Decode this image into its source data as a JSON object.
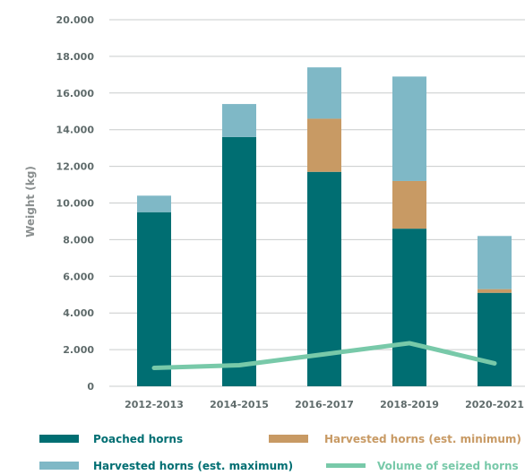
{
  "chart_data": {
    "type": "bar",
    "stacked": true,
    "categories": [
      "2012-2013",
      "2014-2015",
      "2016-2017",
      "2018-2019",
      "2020-2021"
    ],
    "ylabel": "Weight (kg)",
    "ylim": [
      0,
      20000
    ],
    "yticks": [
      0,
      2000,
      4000,
      6000,
      8000,
      10000,
      12000,
      14000,
      16000,
      18000,
      20000
    ],
    "ytick_labels": [
      "0",
      "2.000",
      "4.000",
      "6.000",
      "8.000",
      "10.000",
      "12.000",
      "14.000",
      "16.000",
      "18.000",
      "20.000"
    ],
    "grid": true,
    "legend_position": "bottom",
    "series": [
      {
        "name": "Poached horns",
        "kind": "bar",
        "color": "#006e72",
        "values": [
          9500,
          13600,
          11700,
          8600,
          5100
        ]
      },
      {
        "name": "Harvested horns (est. minimum)",
        "kind": "bar",
        "color": "#c89a64",
        "values": [
          0,
          0,
          2900,
          2600,
          200
        ]
      },
      {
        "name": "Harvested horns (est. maximum)",
        "kind": "bar",
        "color": "#7fb8c6",
        "values": [
          900,
          1800,
          2800,
          5700,
          2900
        ]
      },
      {
        "name": "Volume of seized horns",
        "kind": "line",
        "color": "#78c9a9",
        "values": [
          1000,
          1150,
          1750,
          2350,
          1250
        ]
      }
    ]
  }
}
